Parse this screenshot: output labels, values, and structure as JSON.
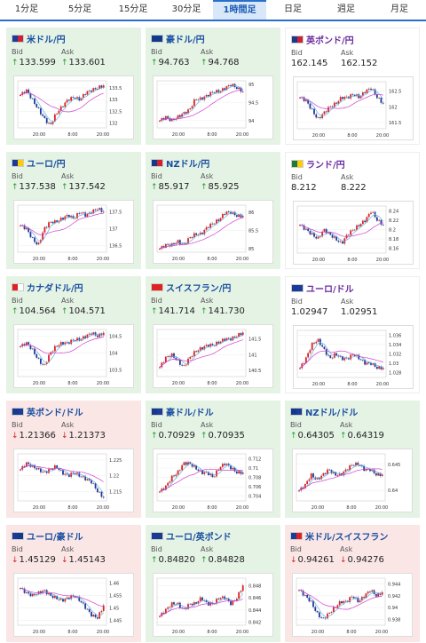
{
  "tabs": [
    {
      "label": "1分足",
      "active": false
    },
    {
      "label": "5分足",
      "active": false
    },
    {
      "label": "15分足",
      "active": false
    },
    {
      "label": "30分足",
      "active": false
    },
    {
      "label": "1時間足",
      "active": true
    },
    {
      "label": "日足",
      "active": false
    },
    {
      "label": "週足",
      "active": false
    },
    {
      "label": "月足",
      "active": false
    }
  ],
  "labels": {
    "bid": "Bid",
    "ask": "Ask"
  },
  "colors": {
    "up": "#1f9a2a",
    "down": "#d02020",
    "ma_short": "#6ab0e0",
    "ma_long": "#d040d0",
    "up_bg": "#e5f3e5",
    "down_bg": "#fbe6e6"
  },
  "cards": [
    {
      "pair": "米ドル/円",
      "state": "up",
      "flag": [
        "#1c3c9a",
        "#cc2233"
      ],
      "bid": "133.599",
      "ask": "133.601",
      "chart_data": {
        "type": "candlestick",
        "yticks": [
          "133.5",
          "133",
          "132.5",
          "132"
        ],
        "xticks": [
          "20:00",
          "8:00",
          "20:00"
        ],
        "ylim": [
          131.8,
          133.8
        ],
        "trend": [
          133.2,
          133.4,
          133.0,
          132.6,
          132.2,
          131.9,
          132.4,
          132.7,
          133.0,
          133.1,
          133.0,
          133.3,
          133.4,
          133.5,
          133.6
        ]
      }
    },
    {
      "pair": "豪ドル/円",
      "state": "up",
      "flag": [
        "#123a8a",
        "#123a8a"
      ],
      "bid": "94.763",
      "ask": "94.768",
      "chart_data": {
        "type": "candlestick",
        "yticks": [
          "95",
          "94.5",
          "94"
        ],
        "xticks": [
          "20:00",
          "8:00",
          "20:00"
        ],
        "ylim": [
          93.8,
          95.1
        ],
        "trend": [
          94.0,
          94.1,
          94.0,
          94.1,
          94.2,
          94.3,
          94.6,
          94.6,
          94.7,
          94.8,
          94.8,
          94.9,
          95.0,
          94.9,
          94.8
        ]
      }
    },
    {
      "pair": "英ポンド/円",
      "state": "neutral",
      "flag": [
        "#1a3a8a",
        "#cc2233"
      ],
      "bid": "162.145",
      "ask": "162.152",
      "chart_data": {
        "type": "candlestick",
        "yticks": [
          "162.5",
          "162",
          "161.5"
        ],
        "xticks": [
          "20:00",
          "8:00",
          "20:00"
        ],
        "ylim": [
          161.3,
          162.8
        ],
        "trend": [
          162.3,
          162.2,
          161.9,
          161.6,
          161.8,
          162.0,
          162.1,
          162.3,
          162.3,
          162.4,
          162.3,
          162.5,
          162.6,
          162.3,
          162.1
        ]
      }
    },
    {
      "pair": "ユーロ/円",
      "state": "up",
      "flag": [
        "#1a3a9a",
        "#ffcc00"
      ],
      "bid": "137.538",
      "ask": "137.542",
      "chart_data": {
        "type": "candlestick",
        "yticks": [
          "137.5",
          "137",
          "136.5"
        ],
        "xticks": [
          "20:00",
          "8:00",
          "20:00"
        ],
        "ylim": [
          136.3,
          137.7
        ],
        "trend": [
          137.1,
          137.0,
          136.7,
          136.5,
          137.0,
          137.2,
          137.2,
          137.3,
          137.4,
          137.3,
          137.5,
          137.4,
          137.5,
          137.6,
          137.5
        ]
      }
    },
    {
      "pair": "NZドル/円",
      "state": "up",
      "flag": [
        "#123a8a",
        "#cc2233"
      ],
      "bid": "85.917",
      "ask": "85.925",
      "chart_data": {
        "type": "candlestick",
        "yticks": [
          "86",
          "85.5",
          "85"
        ],
        "xticks": [
          "20:00",
          "8:00",
          "20:00"
        ],
        "ylim": [
          84.9,
          86.2
        ],
        "trend": [
          85.0,
          85.1,
          85.1,
          85.2,
          85.1,
          85.3,
          85.4,
          85.4,
          85.6,
          85.7,
          85.8,
          86.0,
          86.0,
          85.9,
          85.9
        ]
      }
    },
    {
      "pair": "ランド/円",
      "state": "neutral",
      "flag": [
        "#1f7a3a",
        "#ffcc00"
      ],
      "bid": "8.212",
      "ask": "8.222",
      "chart_data": {
        "type": "candlestick",
        "yticks": [
          "8.24",
          "8.22",
          "8.2",
          "8.18",
          "8.16"
        ],
        "xticks": [
          "20:00",
          "8:00",
          "20:00"
        ],
        "ylim": [
          8.15,
          8.25
        ],
        "trend": [
          8.21,
          8.2,
          8.19,
          8.18,
          8.2,
          8.19,
          8.18,
          8.17,
          8.19,
          8.2,
          8.21,
          8.22,
          8.24,
          8.22,
          8.21
        ]
      }
    },
    {
      "pair": "カナダドル/円",
      "state": "up",
      "flag": [
        "#dd2222",
        "#ffffff"
      ],
      "bid": "104.564",
      "ask": "104.571",
      "chart_data": {
        "type": "candlestick",
        "yticks": [
          "104.5",
          "104",
          "103.5"
        ],
        "xticks": [
          "20:00",
          "8:00",
          "20:00"
        ],
        "ylim": [
          103.3,
          104.7
        ],
        "trend": [
          104.2,
          104.3,
          104.1,
          103.8,
          103.6,
          104.0,
          104.2,
          104.3,
          104.3,
          104.4,
          104.4,
          104.5,
          104.6,
          104.5,
          104.6
        ]
      }
    },
    {
      "pair": "スイスフラン/円",
      "state": "up",
      "flag": [
        "#dd2222",
        "#dd2222"
      ],
      "bid": "141.714",
      "ask": "141.730",
      "chart_data": {
        "type": "candlestick",
        "yticks": [
          "141.5",
          "141",
          "140.5"
        ],
        "xticks": [
          "20:00",
          "8:00",
          "20:00"
        ],
        "ylim": [
          140.3,
          141.8
        ],
        "trend": [
          140.6,
          140.9,
          141.0,
          140.8,
          140.6,
          140.9,
          141.1,
          141.2,
          141.3,
          141.3,
          141.4,
          141.5,
          141.5,
          141.6,
          141.7
        ]
      }
    },
    {
      "pair": "ユーロ/ドル",
      "state": "neutral",
      "flag": [
        "#1a3a9a",
        "#1c3c9a"
      ],
      "bid": "1.02947",
      "ask": "1.02951",
      "chart_data": {
        "type": "candlestick",
        "yticks": [
          "1.036",
          "1.034",
          "1.032",
          "1.03",
          "1.028"
        ],
        "xticks": [
          "20:00",
          "8:00",
          "20:00"
        ],
        "ylim": [
          1.027,
          1.037
        ],
        "trend": [
          1.029,
          1.031,
          1.034,
          1.035,
          1.033,
          1.031,
          1.032,
          1.031,
          1.031,
          1.032,
          1.031,
          1.03,
          1.03,
          1.029,
          1.029
        ]
      }
    },
    {
      "pair": "英ポンド/ドル",
      "state": "down",
      "flag": [
        "#1a3a8a",
        "#1c3c9a"
      ],
      "bid": "1.21366",
      "ask": "1.21373",
      "chart_data": {
        "type": "candlestick",
        "yticks": [
          "1.225",
          "1.22",
          "1.215"
        ],
        "xticks": [
          "20:00",
          "8:00",
          "20:00"
        ],
        "ylim": [
          1.212,
          1.227
        ],
        "trend": [
          1.222,
          1.224,
          1.223,
          1.222,
          1.221,
          1.222,
          1.223,
          1.221,
          1.22,
          1.221,
          1.22,
          1.219,
          1.218,
          1.215,
          1.213
        ]
      }
    },
    {
      "pair": "豪ドル/ドル",
      "state": "up",
      "flag": [
        "#123a8a",
        "#1c3c9a"
      ],
      "bid": "0.70929",
      "ask": "0.70935",
      "chart_data": {
        "type": "candlestick",
        "yticks": [
          "0.712",
          "0.71",
          "0.708",
          "0.706",
          "0.704"
        ],
        "xticks": [
          "20:00",
          "8:00",
          "20:00"
        ],
        "ylim": [
          0.703,
          0.713
        ],
        "trend": [
          0.705,
          0.706,
          0.708,
          0.709,
          0.711,
          0.711,
          0.71,
          0.709,
          0.709,
          0.708,
          0.71,
          0.711,
          0.71,
          0.709,
          0.709
        ]
      }
    },
    {
      "pair": "NZドル/ドル",
      "state": "up",
      "flag": [
        "#123a8a",
        "#1c3c9a"
      ],
      "bid": "0.64305",
      "ask": "0.64319",
      "chart_data": {
        "type": "candlestick",
        "yticks": [
          "0.645",
          "0.64"
        ],
        "xticks": [
          "20:00",
          "8:00",
          "20:00"
        ],
        "ylim": [
          0.638,
          0.647
        ],
        "trend": [
          0.64,
          0.641,
          0.643,
          0.642,
          0.643,
          0.644,
          0.643,
          0.643,
          0.644,
          0.645,
          0.645,
          0.644,
          0.644,
          0.643,
          0.643
        ]
      }
    },
    {
      "pair": "ユーロ/豪ドル",
      "state": "down",
      "flag": [
        "#1a3a9a",
        "#123a8a"
      ],
      "bid": "1.45129",
      "ask": "1.45143",
      "chart_data": {
        "type": "candlestick",
        "yticks": [
          "1.46",
          "1.455",
          "1.45",
          "1.445"
        ],
        "xticks": [
          "20:00",
          "8:00",
          "20:00"
        ],
        "ylim": [
          1.443,
          1.462
        ],
        "trend": [
          1.458,
          1.456,
          1.455,
          1.456,
          1.457,
          1.455,
          1.454,
          1.453,
          1.454,
          1.455,
          1.453,
          1.45,
          1.447,
          1.446,
          1.451
        ]
      }
    },
    {
      "pair": "ユーロ/英ポンド",
      "state": "up",
      "flag": [
        "#1a3a9a",
        "#1a3a8a"
      ],
      "bid": "0.84820",
      "ask": "0.84828",
      "chart_data": {
        "type": "candlestick",
        "yticks": [
          "0.848",
          "0.846",
          "0.844",
          "0.842"
        ],
        "xticks": [
          "20:00",
          "8:00",
          "20:00"
        ],
        "ylim": [
          0.8415,
          0.8492
        ],
        "trend": [
          0.843,
          0.844,
          0.845,
          0.845,
          0.844,
          0.845,
          0.845,
          0.846,
          0.845,
          0.845,
          0.846,
          0.846,
          0.845,
          0.846,
          0.848
        ]
      }
    },
    {
      "pair": "米ドル/スイスフラン",
      "state": "down",
      "flag": [
        "#1c3c9a",
        "#dd2222"
      ],
      "bid": "0.94261",
      "ask": "0.94276",
      "chart_data": {
        "type": "candlestick",
        "yticks": [
          "0.944",
          "0.942",
          "0.94",
          "0.938"
        ],
        "xticks": [
          "20:00",
          "8:00",
          "20:00"
        ],
        "ylim": [
          0.937,
          0.945
        ],
        "trend": [
          0.943,
          0.942,
          0.941,
          0.939,
          0.938,
          0.939,
          0.94,
          0.941,
          0.941,
          0.942,
          0.941,
          0.942,
          0.943,
          0.942,
          0.9426
        ]
      }
    }
  ]
}
